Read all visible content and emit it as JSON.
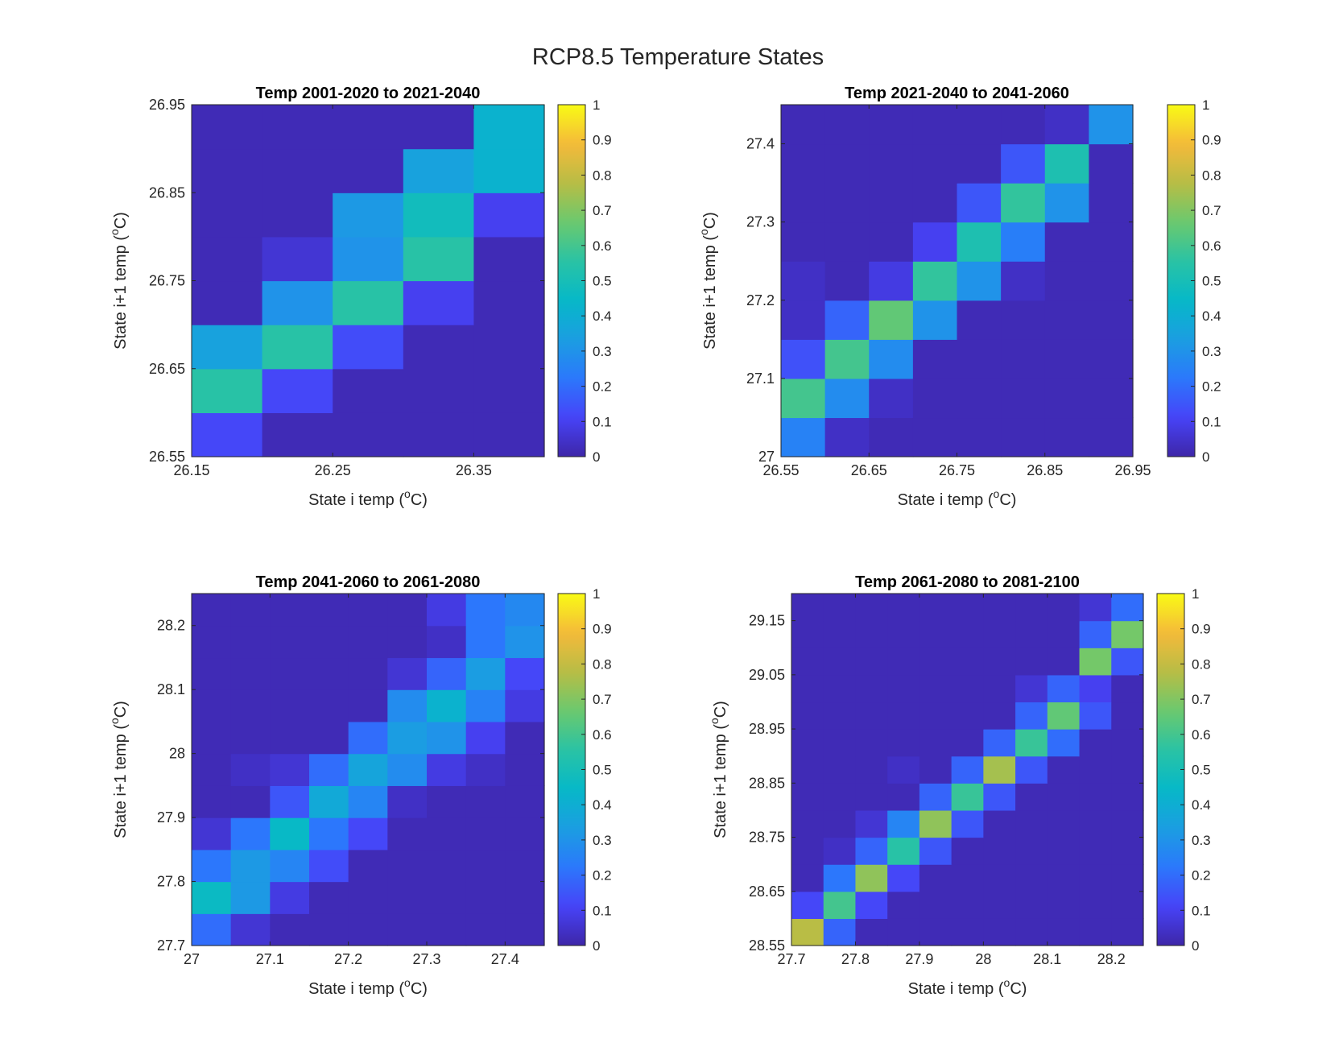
{
  "figure": {
    "title": "RCP8.5 Temperature States"
  },
  "colormap": {
    "name": "parula",
    "stops": [
      "#3e26a8",
      "#4743f8",
      "#2b78fc",
      "#1b9ee1",
      "#06b8c8",
      "#2ac3a4",
      "#6bc96e",
      "#b8bd45",
      "#f5ba3a",
      "#f9fb15"
    ]
  },
  "colorbar": {
    "ticks": [
      "0",
      "0.1",
      "0.2",
      "0.3",
      "0.4",
      "0.5",
      "0.6",
      "0.7",
      "0.8",
      "0.9",
      "1"
    ]
  },
  "chart_data": [
    {
      "type": "heatmap",
      "title": "Temp 2001-2020 to 2021-2040",
      "xlabel": "State i temp (",
      "ylabel": "State i+1 temp (",
      "unit_sup": "o",
      "unit_tail": "C)",
      "xlim": [
        26.15,
        26.4
      ],
      "ylim": [
        26.55,
        26.95
      ],
      "xticks": [
        "26.15",
        "26.25",
        "26.35"
      ],
      "yticks": [
        "26.55",
        "26.65",
        "26.75",
        "26.85",
        "26.95"
      ],
      "clim": [
        0,
        1
      ],
      "x_bins": 5,
      "y_bins": 8,
      "z": [
        [
          0.12,
          0.02,
          0.02,
          0.02,
          0.02
        ],
        [
          0.55,
          0.12,
          0.02,
          0.02,
          0.02
        ],
        [
          0.35,
          0.55,
          0.13,
          0.02,
          0.02
        ],
        [
          0.02,
          0.3,
          0.55,
          0.1,
          0.02
        ],
        [
          0.02,
          0.06,
          0.3,
          0.55,
          0.1
        ],
        [
          0.02,
          0.02,
          0.06,
          0.32,
          0.48
        ],
        [
          0.02,
          0.02,
          0.02,
          0.06,
          0.35
        ],
        [
          0.02,
          0.02,
          0.02,
          0.02,
          0.05
        ]
      ],
      "z_overrides": [
        {
          "row": 4,
          "col": 4,
          "value": 0.02
        },
        {
          "row": 5,
          "col": 4,
          "value": 0.1
        },
        {
          "row": 6,
          "col": 4,
          "value": 0.42
        },
        {
          "row": 7,
          "col": 4,
          "value": 0.42
        },
        {
          "row": 6,
          "col": 3,
          "value": 0.35
        },
        {
          "row": 5,
          "col": 3,
          "value": 0.48
        },
        {
          "row": 5,
          "col": 2,
          "value": 0.32
        }
      ],
      "grid": false
    },
    {
      "type": "heatmap",
      "title": "Temp 2021-2040 to 2041-2060",
      "xlabel": "State i temp (",
      "ylabel": "State i+1 temp (",
      "unit_sup": "o",
      "unit_tail": "C)",
      "xlim": [
        26.55,
        26.95
      ],
      "ylim": [
        27,
        27.45
      ],
      "xticks": [
        "26.55",
        "26.65",
        "26.75",
        "26.85",
        "26.95"
      ],
      "yticks": [
        "27",
        "27.1",
        "27.2",
        "27.3",
        "27.4"
      ],
      "clim": [
        0,
        1
      ],
      "x_bins": 8,
      "y_bins": 9,
      "z": [
        [
          0.25,
          0.04,
          0.02,
          0.02,
          0.02,
          0.02,
          0.02,
          0.02
        ],
        [
          0.6,
          0.28,
          0.04,
          0.02,
          0.02,
          0.02,
          0.02,
          0.02
        ],
        [
          0.14,
          0.6,
          0.28,
          0.02,
          0.02,
          0.02,
          0.02,
          0.02
        ],
        [
          0.04,
          0.18,
          0.65,
          0.3,
          0.02,
          0.02,
          0.02,
          0.02
        ],
        [
          0.04,
          0.02,
          0.08,
          0.57,
          0.3,
          0.04,
          0.02,
          0.02
        ],
        [
          0.02,
          0.02,
          0.02,
          0.1,
          0.52,
          0.24,
          0.02,
          0.02
        ],
        [
          0.02,
          0.02,
          0.02,
          0.02,
          0.15,
          0.57,
          0.3,
          0.02
        ],
        [
          0.02,
          0.02,
          0.02,
          0.02,
          0.02,
          0.15,
          0.52,
          0.2
        ],
        [
          0.02,
          0.02,
          0.02,
          0.02,
          0.02,
          0.02,
          0.15,
          0.65
        ]
      ],
      "z_overrides": [
        {
          "row": 8,
          "col": 7,
          "value": 0.02
        },
        {
          "row": 8,
          "col": 6,
          "value": 0.04
        },
        {
          "row": 9,
          "col": 6,
          "value": 0.2
        },
        {
          "row": 9,
          "col": 7,
          "value": 0.55
        },
        {
          "row": 8,
          "col": 7,
          "value": 0.3
        },
        {
          "row": 7,
          "col": 7,
          "value": 0.02
        }
      ],
      "grid": false
    },
    {
      "type": "heatmap",
      "title": "Temp 2041-2060 to 2061-2080",
      "xlabel": "State i temp (",
      "ylabel": "State i+1 temp (",
      "unit_sup": "o",
      "unit_tail": "C)",
      "xlim": [
        27,
        27.45
      ],
      "ylim": [
        27.7,
        28.25
      ],
      "xticks": [
        "27",
        "27.1",
        "27.2",
        "27.3",
        "27.4"
      ],
      "yticks": [
        "27.7",
        "27.8",
        "27.9",
        "28",
        "28.1",
        "28.2"
      ],
      "clim": [
        0,
        1
      ],
      "x_bins": 9,
      "y_bins": 11,
      "z": [
        [
          0.2,
          0.06,
          0.02,
          0.02,
          0.02,
          0.02,
          0.02,
          0.02,
          0.02
        ],
        [
          0.46,
          0.32,
          0.08,
          0.02,
          0.02,
          0.02,
          0.02,
          0.02,
          0.02
        ],
        [
          0.22,
          0.32,
          0.26,
          0.13,
          0.02,
          0.02,
          0.02,
          0.02,
          0.02
        ],
        [
          0.06,
          0.22,
          0.45,
          0.22,
          0.12,
          0.02,
          0.02,
          0.02,
          0.02
        ],
        [
          0.02,
          0.02,
          0.15,
          0.38,
          0.26,
          0.04,
          0.02,
          0.02,
          0.02
        ],
        [
          0.02,
          0.04,
          0.06,
          0.2,
          0.36,
          0.28,
          0.08,
          0.04,
          0.02
        ],
        [
          0.02,
          0.02,
          0.02,
          0.02,
          0.2,
          0.33,
          0.3,
          0.1,
          0.02
        ],
        [
          0.02,
          0.02,
          0.02,
          0.02,
          0.02,
          0.28,
          0.42,
          0.25,
          0.08
        ],
        [
          0.02,
          0.02,
          0.02,
          0.02,
          0.02,
          0.06,
          0.18,
          0.33,
          0.25
        ],
        [
          0.02,
          0.02,
          0.02,
          0.02,
          0.02,
          0.02,
          0.04,
          0.22,
          0.33
        ],
        [
          0.02,
          0.02,
          0.02,
          0.02,
          0.02,
          0.02,
          0.02,
          0.06,
          0.25
        ]
      ],
      "z_overrides": [
        {
          "row": 8,
          "col": 8,
          "value": 0.12
        },
        {
          "row": 9,
          "col": 8,
          "value": 0.3
        },
        {
          "row": 10,
          "col": 8,
          "value": 0.27
        },
        {
          "row": 10,
          "col": 7,
          "value": 0.22
        },
        {
          "row": 10,
          "col": 6,
          "value": 0.08
        },
        {
          "row": 11,
          "col": 8,
          "value": 0.22
        }
      ],
      "grid": false
    },
    {
      "type": "heatmap",
      "title": "Temp 2061-2080 to 2081-2100",
      "xlabel": "State i temp (",
      "ylabel": "State i+1 temp (",
      "unit_sup": "o",
      "unit_tail": "C)",
      "xlim": [
        27.7,
        28.25
      ],
      "ylim": [
        28.55,
        29.2
      ],
      "xticks": [
        "27.7",
        "27.8",
        "27.9",
        "28",
        "28.1",
        "28.2"
      ],
      "yticks": [
        "28.55",
        "28.65",
        "28.75",
        "28.85",
        "28.95",
        "29.05",
        "29.15"
      ],
      "clim": [
        0,
        1
      ],
      "x_bins": 11,
      "y_bins": 13,
      "z": [
        [
          0.78,
          0.18,
          0.02,
          0.02,
          0.02,
          0.02,
          0.02,
          0.02,
          0.02,
          0.02,
          0.02
        ],
        [
          0.12,
          0.65,
          0.12,
          0.02,
          0.02,
          0.02,
          0.02,
          0.02,
          0.02,
          0.02,
          0.02
        ],
        [
          0.02,
          0.18,
          0.6,
          0.08,
          0.02,
          0.02,
          0.02,
          0.02,
          0.02,
          0.02,
          0.02
        ],
        [
          0.02,
          0.04,
          0.26,
          0.72,
          0.15,
          0.02,
          0.02,
          0.02,
          0.02,
          0.02,
          0.02
        ],
        [
          0.02,
          0.02,
          0.06,
          0.18,
          0.55,
          0.17,
          0.02,
          0.02,
          0.02,
          0.02,
          0.02
        ],
        [
          0.02,
          0.02,
          0.02,
          0.02,
          0.3,
          0.7,
          0.15,
          0.02,
          0.02,
          0.02,
          0.02
        ],
        [
          0.02,
          0.02,
          0.02,
          0.04,
          0.02,
          0.16,
          0.6,
          0.15,
          0.02,
          0.02,
          0.02
        ],
        [
          0.02,
          0.02,
          0.02,
          0.02,
          0.02,
          0.02,
          0.2,
          0.72,
          0.2,
          0.02,
          0.02
        ],
        [
          0.02,
          0.02,
          0.02,
          0.02,
          0.02,
          0.02,
          0.02,
          0.15,
          0.58,
          0.15,
          0.02
        ],
        [
          0.02,
          0.02,
          0.02,
          0.02,
          0.02,
          0.02,
          0.02,
          0.06,
          0.2,
          0.68,
          0.1
        ],
        [
          0.02,
          0.02,
          0.02,
          0.02,
          0.02,
          0.02,
          0.02,
          0.02,
          0.02,
          0.18,
          0.68
        ],
        [
          0.02,
          0.02,
          0.02,
          0.02,
          0.02,
          0.02,
          0.02,
          0.02,
          0.02,
          0.1,
          0.2
        ],
        [
          0.02,
          0.02,
          0.02,
          0.02,
          0.02,
          0.02,
          0.02,
          0.02,
          0.02,
          0.02,
          0.06
        ]
      ],
      "z_overrides": [
        {
          "row": 9,
          "col": 10,
          "value": 0.02
        },
        {
          "row": 10,
          "col": 10,
          "value": 0.15
        },
        {
          "row": 11,
          "col": 10,
          "value": 0.68
        },
        {
          "row": 12,
          "col": 10,
          "value": 0.2
        },
        {
          "row": 10,
          "col": 9,
          "value": 0.68
        },
        {
          "row": 11,
          "col": 9,
          "value": 0.18
        },
        {
          "row": 12,
          "col": 9,
          "value": 0.06
        },
        {
          "row": 9,
          "col": 9,
          "value": 0.1
        },
        {
          "row": 9,
          "col": 8,
          "value": 0.18
        },
        {
          "row": 8,
          "col": 8,
          "value": 0.65
        },
        {
          "row": 8,
          "col": 7,
          "value": 0.18
        },
        {
          "row": 7,
          "col": 7,
          "value": 0.58
        },
        {
          "row": 7,
          "col": 6,
          "value": 0.18
        },
        {
          "row": 6,
          "col": 6,
          "value": 0.75
        },
        {
          "row": 6,
          "col": 5,
          "value": 0.18
        },
        {
          "row": 5,
          "col": 5,
          "value": 0.58
        },
        {
          "row": 4,
          "col": 4,
          "value": 0.72
        },
        {
          "row": 4,
          "col": 5,
          "value": 0.15
        },
        {
          "row": 5,
          "col": 4,
          "value": 0.18
        },
        {
          "row": 4,
          "col": 3,
          "value": 0.26
        },
        {
          "row": 3,
          "col": 3,
          "value": 0.55
        },
        {
          "row": 3,
          "col": 4,
          "value": 0.15
        },
        {
          "row": 3,
          "col": 2,
          "value": 0.18
        },
        {
          "row": 2,
          "col": 2,
          "value": 0.72
        },
        {
          "row": 2,
          "col": 3,
          "value": 0.12
        },
        {
          "row": 2,
          "col": 1,
          "value": 0.22
        },
        {
          "row": 1,
          "col": 1,
          "value": 0.6
        },
        {
          "row": 1,
          "col": 2,
          "value": 0.12
        }
      ],
      "grid": false
    }
  ]
}
